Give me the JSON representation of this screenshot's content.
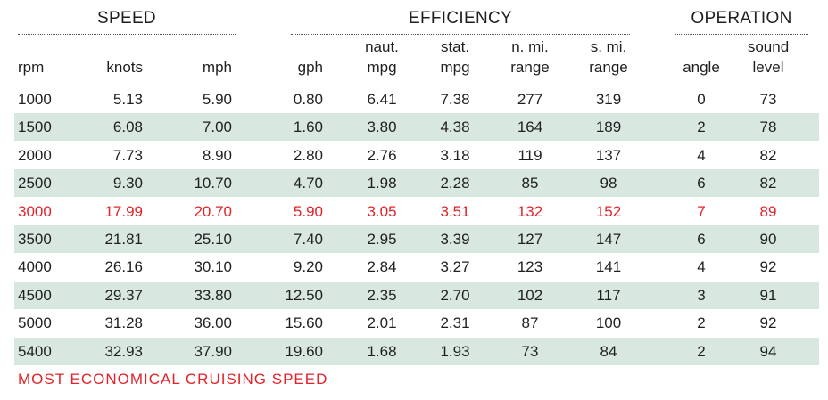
{
  "groups": {
    "speed": "SPEED",
    "efficiency": "EFFICIENCY",
    "operation": "OPERATION"
  },
  "columns": [
    {
      "line1": "",
      "line2": "rpm"
    },
    {
      "line1": "",
      "line2": "knots"
    },
    {
      "line1": "",
      "line2": "mph"
    },
    {
      "line1": "",
      "line2": "gph"
    },
    {
      "line1": "naut.",
      "line2": "mpg"
    },
    {
      "line1": "stat.",
      "line2": "mpg"
    },
    {
      "line1": "n. mi.",
      "line2": "range"
    },
    {
      "line1": "s. mi.",
      "line2": "range"
    },
    {
      "line1": "",
      "line2": "angle"
    },
    {
      "line1": "sound",
      "line2": "level"
    }
  ],
  "rows": [
    [
      "1000",
      "5.13",
      "5.90",
      "0.80",
      "6.41",
      "7.38",
      "277",
      "319",
      "0",
      "73"
    ],
    [
      "1500",
      "6.08",
      "7.00",
      "1.60",
      "3.80",
      "4.38",
      "164",
      "189",
      "2",
      "78"
    ],
    [
      "2000",
      "7.73",
      "8.90",
      "2.80",
      "2.76",
      "3.18",
      "119",
      "137",
      "4",
      "82"
    ],
    [
      "2500",
      "9.30",
      "10.70",
      "4.70",
      "1.98",
      "2.28",
      "85",
      "98",
      "6",
      "82"
    ],
    [
      "3000",
      "17.99",
      "20.70",
      "5.90",
      "3.05",
      "3.51",
      "132",
      "152",
      "7",
      "89"
    ],
    [
      "3500",
      "21.81",
      "25.10",
      "7.40",
      "2.95",
      "3.39",
      "127",
      "147",
      "6",
      "90"
    ],
    [
      "4000",
      "26.16",
      "30.10",
      "9.20",
      "2.84",
      "3.27",
      "123",
      "141",
      "4",
      "92"
    ],
    [
      "4500",
      "29.37",
      "33.80",
      "12.50",
      "2.35",
      "2.70",
      "102",
      "117",
      "3",
      "91"
    ],
    [
      "5000",
      "31.28",
      "36.00",
      "15.60",
      "2.01",
      "2.31",
      "87",
      "100",
      "2",
      "92"
    ],
    [
      "5400",
      "32.93",
      "37.90",
      "19.60",
      "1.68",
      "1.93",
      "73",
      "84",
      "2",
      "94"
    ]
  ],
  "highlight_row": 4,
  "highlight_color": "#e2232a",
  "shade_color": "#d9e7e1",
  "footnote": "MOST ECONOMICAL CRUISING SPEED"
}
